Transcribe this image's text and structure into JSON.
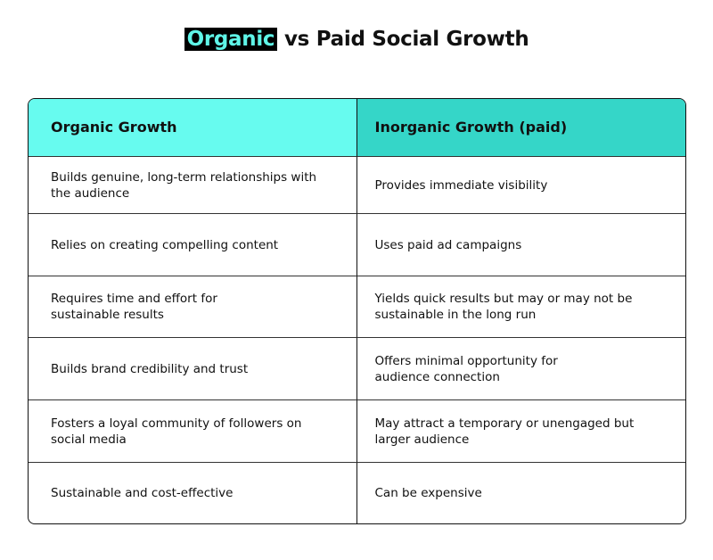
{
  "title": {
    "highlight": "Organic",
    "rest": " vs Paid Social Growth"
  },
  "colors": {
    "left_header": "#67fbef",
    "right_header": "#35d6c8",
    "title_highlight_bg": "#000000",
    "title_highlight_text": "#5ff5e8"
  },
  "table": {
    "headers": [
      "Organic Growth",
      "Inorganic Growth (paid)"
    ],
    "rows": [
      [
        "Builds genuine, long-term relationships with the audience",
        "Provides immediate visibility"
      ],
      [
        "Relies on creating compelling content",
        "Uses paid ad campaigns"
      ],
      [
        "Requires time and effort for sustainable results",
        "Yields quick results but may or may not be sustainable in the long run"
      ],
      [
        "Builds brand credibility and trust",
        "Offers minimal opportunity for audience connection"
      ],
      [
        "Fosters a loyal community of followers on social media",
        "May attract a temporary or unengaged but larger audience"
      ],
      [
        "Sustainable and cost-effective",
        "Can be expensive"
      ]
    ]
  }
}
